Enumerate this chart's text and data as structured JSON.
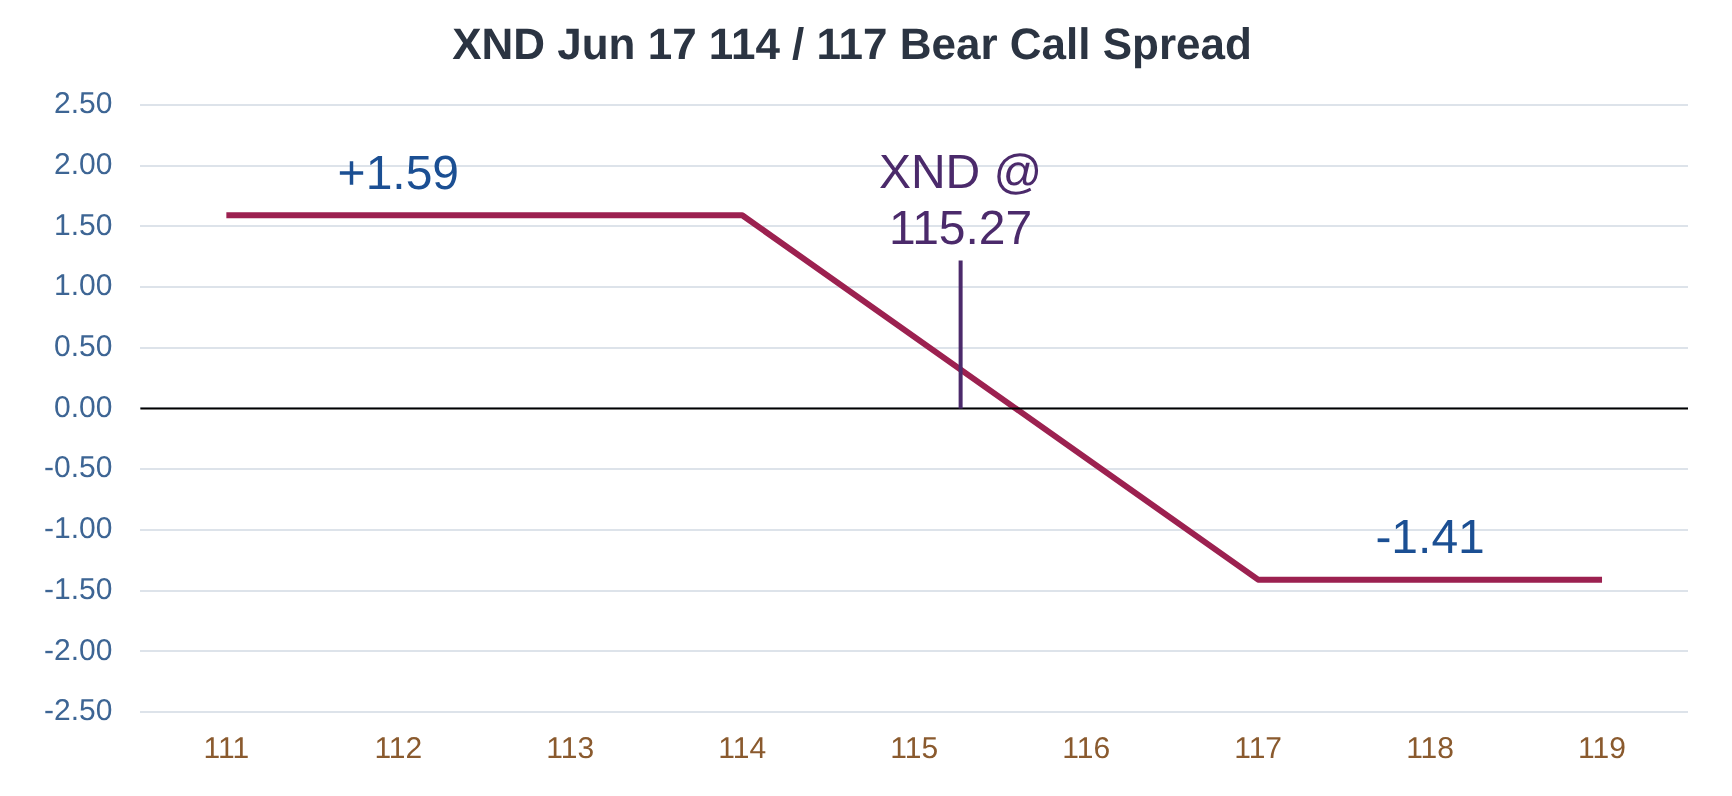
{
  "chart_data": {
    "type": "line",
    "title": "XND Jun 17 114 / 117 Bear Call Spread",
    "x": [
      111,
      114,
      117,
      119
    ],
    "series": [
      {
        "color": "#9c2150",
        "values": [
          1.59,
          1.59,
          -1.41,
          -1.41
        ]
      }
    ],
    "xlim": [
      110.5,
      119.5
    ],
    "xticks": [
      111,
      112,
      113,
      114,
      115,
      116,
      117,
      118,
      119
    ],
    "ylim": [
      -2.5,
      2.5
    ],
    "yticks": [
      {
        "value": 2.5,
        "label": "2.50"
      },
      {
        "value": 2,
        "label": "2.00"
      },
      {
        "value": 1.5,
        "label": "1.50"
      },
      {
        "value": 1,
        "label": "1.00"
      },
      {
        "value": 0.5,
        "label": "0.50"
      },
      {
        "value": 0,
        "label": "0.00"
      },
      {
        "value": -0.5,
        "label": "-0.50"
      },
      {
        "value": -1,
        "label": "-1.00"
      },
      {
        "value": -1.5,
        "label": "-1.50"
      },
      {
        "value": -2,
        "label": "-2.00"
      },
      {
        "value": -2.5,
        "label": "-2.50"
      }
    ],
    "grid": "y",
    "marker": "none",
    "line_style": "solid",
    "legend": false,
    "ref_lines": [
      {
        "axis": "y",
        "value": 0,
        "color": "#000000"
      },
      {
        "axis": "x",
        "value": 115.27,
        "label": "XND @ 115.27",
        "color": "#4b2a6b"
      }
    ],
    "annotations": [
      {
        "text": "+1.59",
        "x": 112,
        "y": 1.59
      },
      {
        "text": "-1.41",
        "x": 118,
        "y": -1.41
      }
    ]
  }
}
